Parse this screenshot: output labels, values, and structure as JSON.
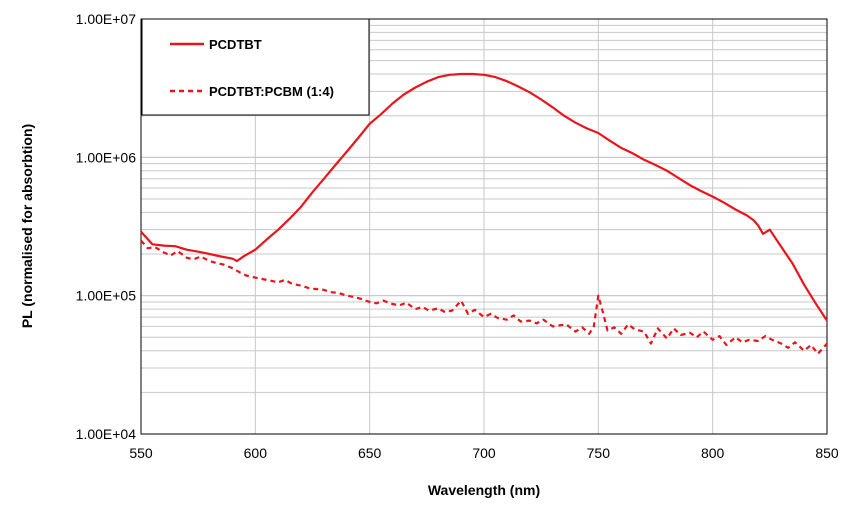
{
  "chart_data": {
    "type": "line",
    "title": "",
    "xlabel": "Wavelength (nm)",
    "ylabel": "PL (normalised for absorbtion)",
    "yscale": "log",
    "xlim": [
      550,
      850
    ],
    "ylim": [
      10000,
      10000000
    ],
    "grid": true,
    "legend_position": "top-left",
    "x_ticks": [
      550,
      600,
      650,
      700,
      750,
      800,
      850
    ],
    "x_tick_labels": [
      "550",
      "600",
      "650",
      "700",
      "750",
      "800",
      "850"
    ],
    "y_ticks": [
      10000,
      100000,
      1000000,
      10000000
    ],
    "y_tick_labels": [
      "1.00E+04",
      "1.00E+05",
      "1.00E+06",
      "1.00E+07"
    ],
    "colors": {
      "series": "#e8151b",
      "grid": "#c8c8c8",
      "frame": "#000000"
    },
    "series": [
      {
        "name": "PCDTBT",
        "style": "solid",
        "x": [
          550,
          555,
          560,
          565,
          570,
          575,
          580,
          585,
          590,
          592,
          595,
          600,
          605,
          610,
          615,
          620,
          625,
          630,
          635,
          640,
          645,
          650,
          655,
          660,
          665,
          670,
          675,
          680,
          685,
          690,
          695,
          700,
          705,
          710,
          715,
          720,
          725,
          730,
          735,
          740,
          745,
          750,
          755,
          760,
          765,
          770,
          775,
          780,
          785,
          790,
          795,
          800,
          805,
          810,
          815,
          818,
          820,
          822,
          825,
          830,
          835,
          840,
          845,
          850
        ],
        "values": [
          290000,
          235000,
          230000,
          228000,
          215000,
          208000,
          200000,
          192000,
          185000,
          178000,
          193000,
          215000,
          255000,
          300000,
          360000,
          440000,
          560000,
          700000,
          880000,
          1100000,
          1380000,
          1750000,
          2050000,
          2450000,
          2850000,
          3200000,
          3520000,
          3800000,
          3950000,
          4000000,
          4000000,
          3950000,
          3800000,
          3550000,
          3250000,
          2950000,
          2620000,
          2300000,
          2000000,
          1780000,
          1620000,
          1500000,
          1320000,
          1170000,
          1070000,
          960000,
          880000,
          800000,
          710000,
          630000,
          570000,
          520000,
          470000,
          420000,
          380000,
          350000,
          320000,
          280000,
          300000,
          225000,
          170000,
          120000,
          88000,
          66000
        ]
      },
      {
        "name": "PCDTBT:PCBM (1:4)",
        "style": "dashed",
        "x": [
          550,
          553,
          556,
          560,
          563,
          566,
          570,
          573,
          576,
          580,
          583,
          586,
          590,
          593,
          596,
          600,
          603,
          606,
          610,
          613,
          616,
          620,
          623,
          626,
          630,
          633,
          636,
          640,
          643,
          646,
          650,
          653,
          656,
          660,
          663,
          666,
          670,
          673,
          676,
          680,
          683,
          686,
          690,
          693,
          696,
          700,
          703,
          706,
          710,
          713,
          716,
          720,
          723,
          726,
          730,
          733,
          736,
          740,
          743,
          746,
          748,
          750,
          752,
          754,
          757,
          760,
          763,
          766,
          770,
          773,
          776,
          780,
          783,
          786,
          790,
          793,
          796,
          800,
          803,
          806,
          810,
          813,
          816,
          820,
          823,
          826,
          830,
          833,
          836,
          840,
          843,
          846,
          850
        ],
        "values": [
          250000,
          220000,
          225000,
          205000,
          195000,
          210000,
          188000,
          183000,
          192000,
          178000,
          172000,
          168000,
          158000,
          148000,
          140000,
          135000,
          132000,
          129000,
          125000,
          130000,
          122000,
          118000,
          114000,
          112000,
          110000,
          106000,
          105000,
          100000,
          98000,
          95000,
          90000,
          88000,
          92000,
          87000,
          85000,
          89000,
          80000,
          83000,
          78000,
          81000,
          76000,
          78000,
          92000,
          74000,
          79000,
          70000,
          74000,
          69000,
          67000,
          72000,
          65000,
          66000,
          63000,
          67000,
          60000,
          61000,
          62000,
          55000,
          59000,
          53000,
          60000,
          100000,
          76000,
          56000,
          59000,
          53000,
          62000,
          57000,
          55000,
          45000,
          58000,
          49000,
          58000,
          52000,
          54000,
          50000,
          55000,
          48000,
          51000,
          44000,
          50000,
          46000,
          48000,
          47000,
          51000,
          48000,
          45000,
          42000,
          46000,
          40000,
          44000,
          38000,
          45000
        ]
      }
    ]
  }
}
